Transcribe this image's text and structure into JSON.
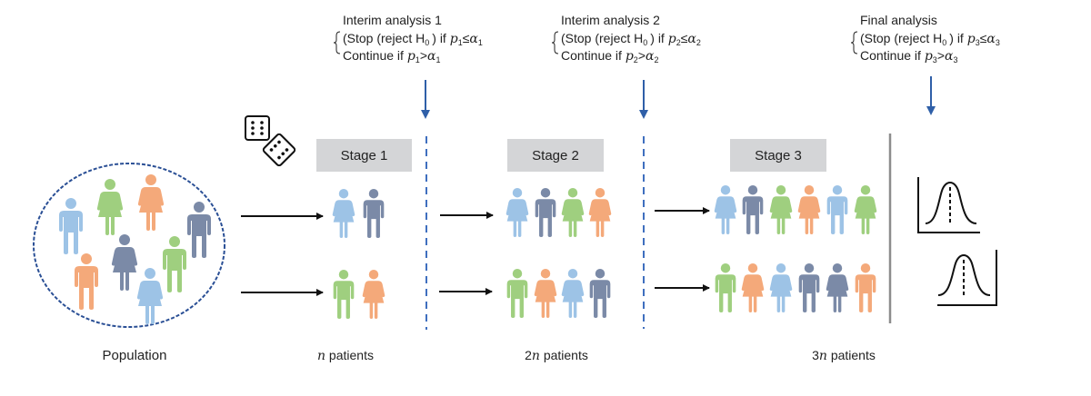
{
  "colors": {
    "light_blue": "#9dc3e6",
    "slate": "#7b8aa7",
    "green": "#9fcf7f",
    "orange": "#f4a97a",
    "dashed_line": "#3f6fbf",
    "arrow_blue": "#2f5fa8",
    "stage_box": "#d4d5d7"
  },
  "analyses": [
    {
      "title": "Interim analysis 1",
      "stop_text": "(Stop (reject H",
      "h_sub": "0",
      "stop_tail": ") if",
      "p": "p",
      "idx": "1",
      "le": "≤",
      "gt": ">",
      "alpha": "α",
      "continue_text": "Continue if"
    },
    {
      "title": "Interim analysis 2",
      "stop_text": "(Stop (reject H",
      "h_sub": "0",
      "stop_tail": ") if",
      "p": "p",
      "idx": "2",
      "le": "≤",
      "gt": ">",
      "alpha": "α",
      "continue_text": "Continue if"
    },
    {
      "title": "Final analysis",
      "stop_text": "(Stop (reject H",
      "h_sub": "0",
      "stop_tail": ") if",
      "p": "p",
      "idx": "3",
      "le": "≤",
      "gt": ">",
      "alpha": "α",
      "continue_text": "Continue if"
    }
  ],
  "stages": [
    {
      "label": "Stage 1",
      "count_prefix": "",
      "n": "n",
      "count_suffix": " patients"
    },
    {
      "label": "Stage 2",
      "count_prefix": "2",
      "n": "n",
      "count_suffix": " patients"
    },
    {
      "label": "Stage 3",
      "count_prefix": "3",
      "n": "n",
      "count_suffix": " patients"
    }
  ],
  "population_label": "Population",
  "icons": [
    "dice-icon",
    "person-icon",
    "normal-distribution-icon",
    "arrow-icon"
  ],
  "population": [
    {
      "sex": "male",
      "color": "light_blue"
    },
    {
      "sex": "female",
      "color": "green"
    },
    {
      "sex": "female",
      "color": "orange"
    },
    {
      "sex": "male",
      "color": "slate"
    },
    {
      "sex": "male",
      "color": "orange"
    },
    {
      "sex": "female",
      "color": "slate"
    },
    {
      "sex": "male",
      "color": "green"
    },
    {
      "sex": "female",
      "color": "light_blue"
    }
  ],
  "stage_groups": [
    {
      "row1": [
        [
          "female",
          "light_blue"
        ],
        [
          "male",
          "slate"
        ]
      ],
      "row2": [
        [
          "male",
          "green"
        ],
        [
          "female",
          "orange"
        ]
      ]
    },
    {
      "row1": [
        [
          "female",
          "light_blue"
        ],
        [
          "male",
          "slate"
        ],
        [
          "female",
          "green"
        ],
        [
          "female",
          "orange"
        ]
      ],
      "row2": [
        [
          "male",
          "green"
        ],
        [
          "female",
          "orange"
        ],
        [
          "female",
          "light_blue"
        ],
        [
          "male",
          "slate"
        ]
      ]
    },
    {
      "row1": [
        [
          "female",
          "light_blue"
        ],
        [
          "male",
          "slate"
        ],
        [
          "female",
          "green"
        ],
        [
          "female",
          "orange"
        ],
        [
          "male",
          "light_blue"
        ],
        [
          "female",
          "green"
        ]
      ],
      "row2": [
        [
          "male",
          "green"
        ],
        [
          "female",
          "orange"
        ],
        [
          "female",
          "light_blue"
        ],
        [
          "male",
          "slate"
        ],
        [
          "female",
          "slate"
        ],
        [
          "male",
          "orange"
        ]
      ]
    }
  ]
}
